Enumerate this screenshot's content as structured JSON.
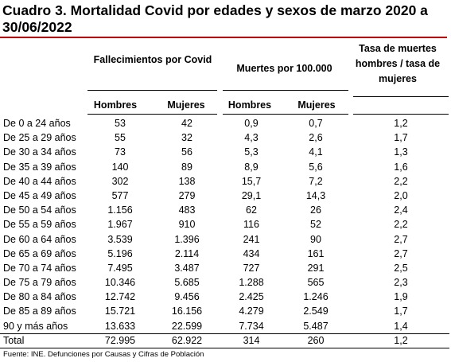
{
  "title": "Cuadro 3. Mortalidad Covid por edades y sexos de marzo 2020 a 30/06/2022",
  "accent_color": "#c00000",
  "headers": {
    "fallecimientos": "Fallecimientos por Covid",
    "muertes": "Muertes por 100.000",
    "tasa": "Tasa de muertes hombres / tasa de mujeres",
    "sub": [
      "Hombres",
      "Mujeres",
      "Hombres",
      "Mujeres"
    ]
  },
  "rows": [
    {
      "age": "De 0 a 24 años",
      "fh": "53",
      "fm": "42",
      "mh": "0,9",
      "mm": "0,7",
      "tasa": "1,2"
    },
    {
      "age": "De 25 a 29 años",
      "fh": "55",
      "fm": "32",
      "mh": "4,3",
      "mm": "2,6",
      "tasa": "1,7"
    },
    {
      "age": "De 30 a 34 años",
      "fh": "73",
      "fm": "56",
      "mh": "5,3",
      "mm": "4,1",
      "tasa": "1,3"
    },
    {
      "age": "De 35 a 39 años",
      "fh": "140",
      "fm": "89",
      "mh": "8,9",
      "mm": "5,6",
      "tasa": "1,6"
    },
    {
      "age": "De 40 a 44 años",
      "fh": "302",
      "fm": "138",
      "mh": "15,7",
      "mm": "7,2",
      "tasa": "2,2"
    },
    {
      "age": "De 45 a 49 años",
      "fh": "577",
      "fm": "279",
      "mh": "29,1",
      "mm": "14,3",
      "tasa": "2,0"
    },
    {
      "age": "De 50 a 54 años",
      "fh": "1.156",
      "fm": "483",
      "mh": "62",
      "mm": "26",
      "tasa": "2,4"
    },
    {
      "age": "De 55 a 59 años",
      "fh": "1.967",
      "fm": "910",
      "mh": "116",
      "mm": "52",
      "tasa": "2,2"
    },
    {
      "age": "De 60 a 64 años",
      "fh": "3.539",
      "fm": "1.396",
      "mh": "241",
      "mm": "90",
      "tasa": "2,7"
    },
    {
      "age": "De 65 a 69 años",
      "fh": "5.196",
      "fm": "2.114",
      "mh": "434",
      "mm": "161",
      "tasa": "2,7"
    },
    {
      "age": "De 70 a 74 años",
      "fh": "7.495",
      "fm": "3.487",
      "mh": "727",
      "mm": "291",
      "tasa": "2,5"
    },
    {
      "age": "De 75 a 79 años",
      "fh": "10.346",
      "fm": "5.685",
      "mh": "1.288",
      "mm": "565",
      "tasa": "2,3"
    },
    {
      "age": "De 80 a 84 años",
      "fh": "12.742",
      "fm": "9.456",
      "mh": "2.425",
      "mm": "1.246",
      "tasa": "1,9"
    },
    {
      "age": "De 85 a 89 años",
      "fh": "15.721",
      "fm": "16.156",
      "mh": "4.279",
      "mm": "2.549",
      "tasa": "1,7"
    },
    {
      "age": "90 y más años",
      "fh": "13.633",
      "fm": "22.599",
      "mh": "7.734",
      "mm": "5.487",
      "tasa": "1,4"
    },
    {
      "age": "Total",
      "fh": "72.995",
      "fm": "62.922",
      "mh": "314",
      "mm": "260",
      "tasa": "1,2"
    }
  ],
  "source": "Fuente: INE. Defunciones por Causas y Cifras de Población"
}
